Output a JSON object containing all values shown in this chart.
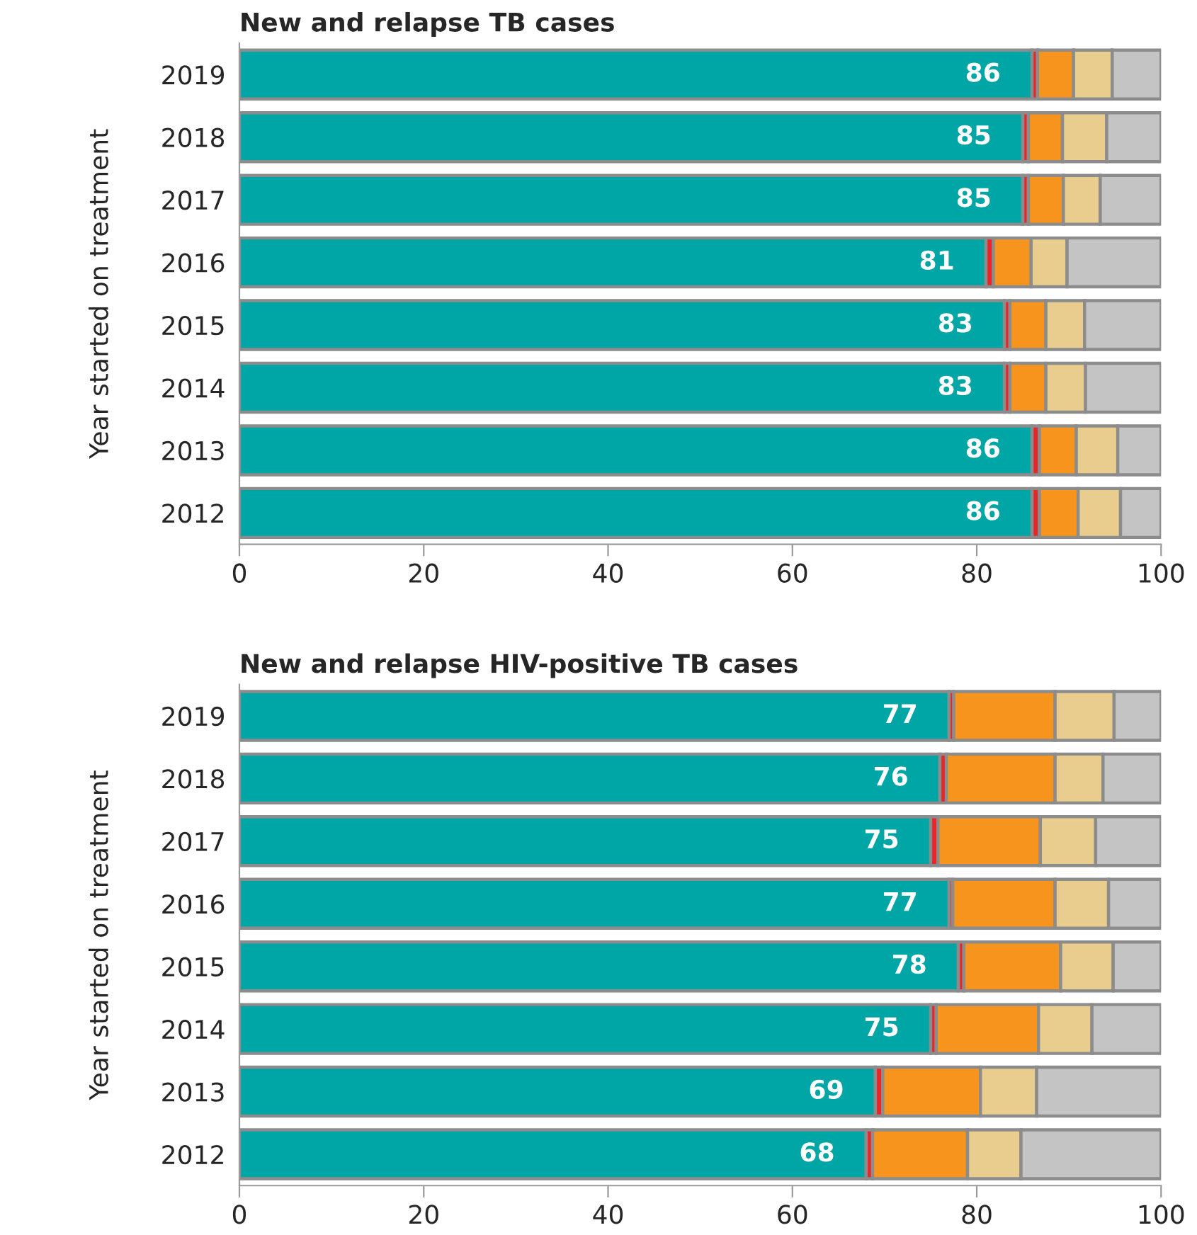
{
  "chart_data": [
    {
      "type": "bar",
      "orientation": "horizontal",
      "stacked": true,
      "title": "New and relapse TB cases",
      "ylabel": "Year started on treatment",
      "categories": [
        "2019",
        "2018",
        "2017",
        "2016",
        "2015",
        "2014",
        "2013",
        "2012"
      ],
      "series": [
        {
          "color": "#00a6a6",
          "values": [
            86,
            85,
            85,
            81,
            83,
            83,
            86,
            86
          ],
          "value_labels": [
            "86",
            "85",
            "85",
            "81",
            "83",
            "83",
            "86",
            "86"
          ]
        },
        {
          "color": "#e8262a",
          "values": [
            0.6,
            0.6,
            0.6,
            0.8,
            0.6,
            0.6,
            0.8,
            0.8
          ]
        },
        {
          "color": "#f7941d",
          "values": [
            3.9,
            3.7,
            3.8,
            4.1,
            3.9,
            3.9,
            4.0,
            4.2
          ]
        },
        {
          "color": "#e8cd8f",
          "values": [
            4.2,
            4.8,
            4.0,
            3.9,
            4.2,
            4.3,
            4.5,
            4.6
          ]
        },
        {
          "color": "#c4c4c4",
          "values": [
            5.3,
            5.9,
            6.6,
            10.2,
            8.3,
            8.2,
            4.7,
            4.4
          ]
        }
      ],
      "xlim": [
        0,
        100
      ],
      "xticks": [
        0,
        20,
        40,
        60,
        80,
        100
      ],
      "grid": false
    },
    {
      "type": "bar",
      "orientation": "horizontal",
      "stacked": true,
      "title": "New and relapse HIV-positive TB cases",
      "ylabel": "Year started on treatment",
      "categories": [
        "2019",
        "2018",
        "2017",
        "2016",
        "2015",
        "2014",
        "2013",
        "2012"
      ],
      "series": [
        {
          "color": "#00a6a6",
          "values": [
            77,
            76,
            75,
            77,
            78,
            75,
            69,
            68
          ],
          "value_labels": [
            "77",
            "76",
            "75",
            "77",
            "78",
            "75",
            "69",
            "68"
          ]
        },
        {
          "color": "#e8262a",
          "values": [
            0.5,
            0.7,
            0.8,
            0.4,
            0.6,
            0.6,
            0.8,
            0.7
          ]
        },
        {
          "color": "#f7941d",
          "values": [
            11.0,
            11.8,
            11.1,
            11.1,
            10.5,
            11.1,
            10.6,
            10.3
          ]
        },
        {
          "color": "#e8cd8f",
          "values": [
            6.4,
            5.2,
            6.0,
            5.8,
            5.7,
            5.8,
            6.1,
            5.8
          ]
        },
        {
          "color": "#c4c4c4",
          "values": [
            5.1,
            6.3,
            7.1,
            5.7,
            5.2,
            7.5,
            13.5,
            15.2
          ]
        }
      ],
      "xlim": [
        0,
        100
      ],
      "xticks": [
        0,
        20,
        40,
        60,
        80,
        100
      ],
      "grid": false
    }
  ]
}
